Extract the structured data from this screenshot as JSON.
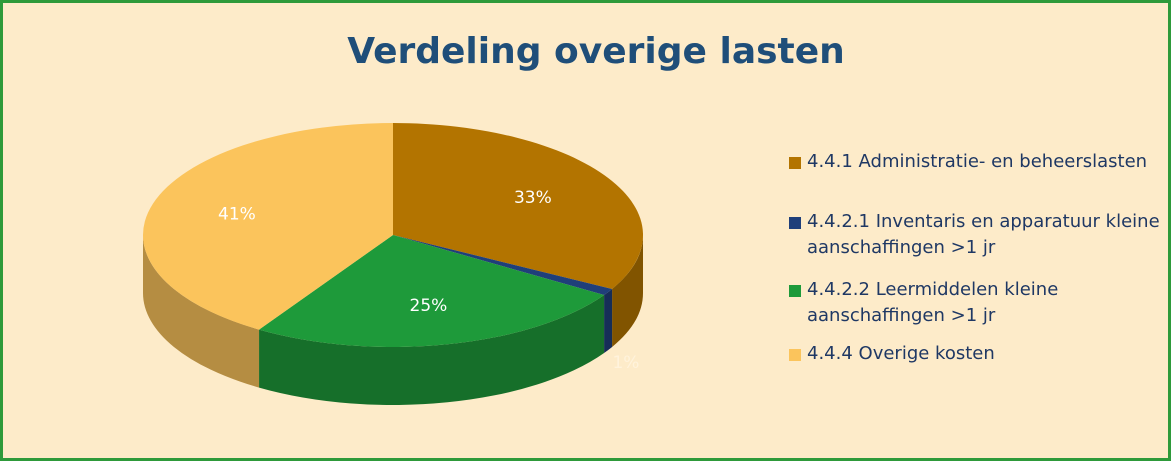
{
  "chart_data": {
    "type": "pie3d",
    "title": "Verdeling overige lasten",
    "categories": [
      "4.4.1 Administratie- en beheerslasten",
      "4.4.2.1 Inventaris en apparatuur kleine aanschaffingen >1 jr",
      "4.4.2.2 Leermiddelen kleine aanschaffingen >1 jr",
      "4.4.4 Overige kosten"
    ],
    "values": [
      33,
      1,
      25,
      41
    ],
    "value_labels": [
      "33%",
      "1%",
      "25%",
      "41%"
    ],
    "colors": [
      "#b37400",
      "#1f3f7a",
      "#1e9a3a",
      "#fbc45c"
    ],
    "legend": "right"
  }
}
